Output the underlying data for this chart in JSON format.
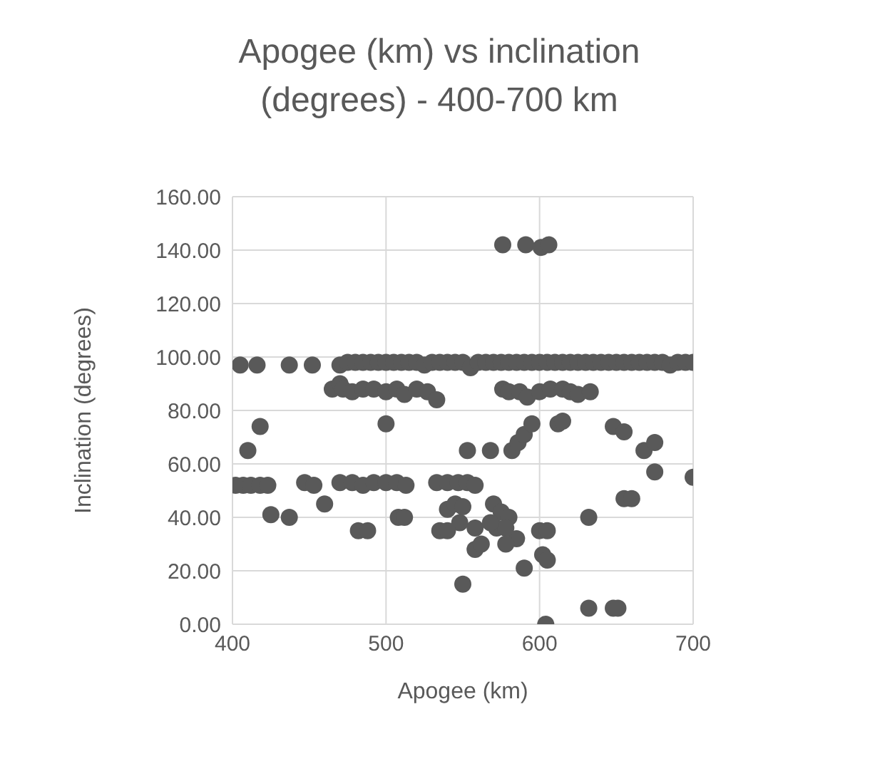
{
  "chart_data": {
    "type": "scatter",
    "title": "Apogee (km) vs inclination (degrees) - 400-700 km",
    "xlabel": "Apogee (km)",
    "ylabel": "Inclination (degrees)",
    "xlim": [
      400,
      700
    ],
    "xticks": [
      400,
      500,
      600,
      700
    ],
    "ylim": [
      0,
      160
    ],
    "yticks": [
      {
        "value": 0,
        "label": "0.00"
      },
      {
        "value": 20,
        "label": "20.00"
      },
      {
        "value": 40,
        "label": "40.00"
      },
      {
        "value": 60,
        "label": "60.00"
      },
      {
        "value": 80,
        "label": "80.00"
      },
      {
        "value": 100,
        "label": "100.00"
      },
      {
        "value": 120,
        "label": "120.00"
      },
      {
        "value": 140,
        "label": "140.00"
      },
      {
        "value": 160,
        "label": "160.00"
      }
    ],
    "grid": true,
    "marker": "circle",
    "series": [
      {
        "color": "#595959",
        "x": [
          576,
          591,
          601,
          606,
          405,
          416,
          437,
          452,
          470,
          475,
          480,
          485,
          490,
          495,
          500,
          505,
          510,
          515,
          520,
          525,
          530,
          535,
          540,
          545,
          550,
          555,
          560,
          565,
          570,
          575,
          580,
          585,
          590,
          595,
          600,
          605,
          610,
          615,
          620,
          625,
          630,
          635,
          640,
          645,
          650,
          655,
          660,
          665,
          670,
          675,
          680,
          685,
          690,
          695,
          700,
          465,
          470,
          472,
          478,
          485,
          492,
          500,
          507,
          512,
          520,
          527,
          533,
          576,
          580,
          587,
          592,
          600,
          607,
          615,
          620,
          625,
          633,
          410,
          418,
          500,
          553,
          568,
          582,
          586,
          590,
          595,
          612,
          615,
          648,
          655,
          668,
          675,
          675,
          700,
          402,
          407,
          412,
          418,
          423,
          447,
          453,
          470,
          478,
          485,
          492,
          500,
          507,
          513,
          533,
          540,
          547,
          553,
          558,
          425,
          437,
          460,
          508,
          512,
          540,
          545,
          550,
          570,
          575,
          580,
          632,
          655,
          660,
          548,
          482,
          488,
          535,
          540,
          558,
          572,
          585,
          578,
          600,
          605,
          602,
          605,
          558,
          562,
          550,
          590,
          568,
          578,
          632,
          648,
          651,
          604
        ],
        "values": [
          142,
          142,
          141,
          142,
          97,
          97,
          97,
          97,
          97,
          98,
          98,
          98,
          98,
          98,
          98,
          98,
          98,
          98,
          98,
          97,
          98,
          98,
          98,
          98,
          98,
          96,
          98,
          98,
          98,
          98,
          98,
          98,
          98,
          98,
          98,
          98,
          98,
          98,
          98,
          98,
          98,
          98,
          98,
          98,
          98,
          98,
          98,
          98,
          98,
          98,
          98,
          97,
          98,
          98,
          98,
          88,
          90,
          88,
          87,
          88,
          88,
          87,
          88,
          86,
          88,
          87,
          84,
          88,
          87,
          87,
          85,
          87,
          88,
          88,
          87,
          86,
          87,
          65,
          74,
          75,
          65,
          65,
          65,
          68,
          71,
          75,
          75,
          76,
          74,
          72,
          65,
          68,
          57,
          55,
          52,
          52,
          52,
          52,
          52,
          53,
          52,
          53,
          53,
          52,
          53,
          53,
          53,
          52,
          53,
          53,
          53,
          53,
          52,
          41,
          40,
          45,
          40,
          40,
          43,
          45,
          44,
          45,
          42,
          40,
          40,
          47,
          47,
          38,
          35,
          35,
          35,
          35,
          36,
          36,
          32,
          36,
          35,
          35,
          26,
          24,
          28,
          30,
          15,
          21,
          38,
          30,
          6,
          6,
          6,
          0
        ]
      }
    ]
  }
}
